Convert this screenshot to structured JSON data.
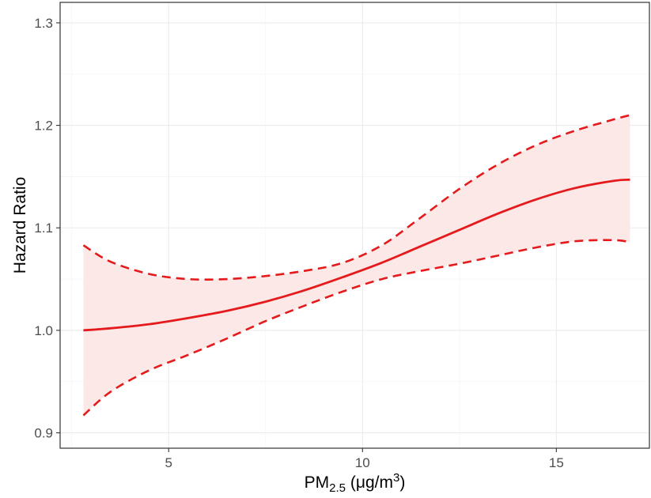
{
  "chart_data": {
    "type": "line",
    "xlabel": {
      "main": "PM",
      "subscript": "2.5",
      "unit_open": " (μg/m",
      "superscript": "3",
      "unit_close": ")"
    },
    "ylabel": "Hazard Ratio",
    "xlim": [
      2.2,
      17.4
    ],
    "ylim": [
      0.885,
      1.32
    ],
    "x_ticks": [
      5,
      10,
      15
    ],
    "x_tick_labels": [
      "5",
      "10",
      "15"
    ],
    "y_ticks": [
      0.9,
      1.0,
      1.1,
      1.2,
      1.3
    ],
    "y_tick_labels": [
      "0.9",
      "1.0",
      "1.1",
      "1.2",
      "1.3"
    ],
    "grid": true,
    "colors": {
      "line": "#e41a1c",
      "ribbon": "#fde8e8",
      "grid_major": "#ebebeb",
      "grid_minor": "#f5f5f5",
      "panel_border": "#333333"
    },
    "x": [
      2.8,
      3.5,
      4.5,
      5.5,
      6.5,
      7.5,
      8.5,
      9.5,
      10.5,
      11.5,
      12.5,
      13.5,
      14.5,
      15.5,
      16.5,
      16.9
    ],
    "series": [
      {
        "role": "estimate",
        "style": "solid",
        "values": [
          1.0,
          1.002,
          1.006,
          1.012,
          1.019,
          1.028,
          1.039,
          1.052,
          1.066,
          1.082,
          1.098,
          1.114,
          1.128,
          1.139,
          1.146,
          1.147
        ]
      },
      {
        "role": "upper",
        "style": "dashed",
        "values": [
          1.083,
          1.067,
          1.055,
          1.05,
          1.05,
          1.053,
          1.058,
          1.066,
          1.083,
          1.11,
          1.138,
          1.162,
          1.181,
          1.195,
          1.206,
          1.21
        ]
      },
      {
        "role": "lower",
        "style": "dashed",
        "values": [
          0.917,
          0.94,
          0.961,
          0.976,
          0.992,
          1.009,
          1.024,
          1.038,
          1.05,
          1.058,
          1.065,
          1.073,
          1.081,
          1.087,
          1.088,
          1.086
        ]
      }
    ]
  }
}
